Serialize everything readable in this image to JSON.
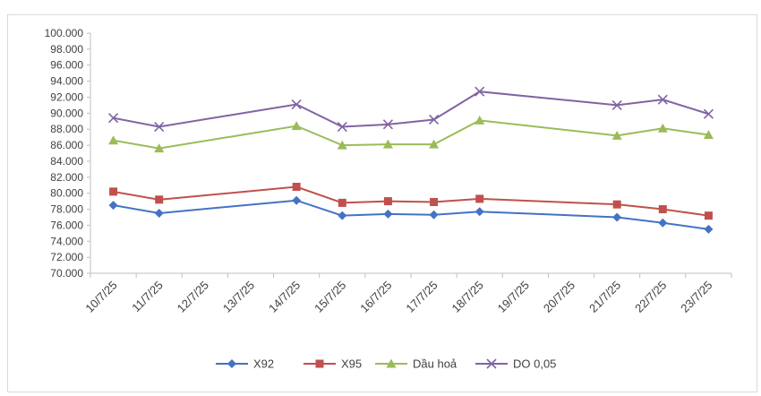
{
  "chart_data": {
    "type": "line",
    "title": "",
    "xlabel": "",
    "ylabel": "",
    "categories": [
      "10/7/25",
      "11/7/25",
      "12/7/25",
      "13/7/25",
      "14/7/25",
      "15/7/25",
      "16/7/25",
      "17/7/25",
      "18/7/25",
      "19/7/25",
      "20/7/25",
      "21/7/25",
      "22/7/25",
      "23/7/25"
    ],
    "ylim": [
      70000,
      100000
    ],
    "yticks": [
      70000,
      72000,
      74000,
      76000,
      78000,
      80000,
      82000,
      84000,
      86000,
      88000,
      90000,
      92000,
      94000,
      96000,
      98000,
      100000
    ],
    "ytick_labels": [
      "70.000",
      "72.000",
      "74.000",
      "76.000",
      "78.000",
      "80.000",
      "82.000",
      "84.000",
      "86.000",
      "88.000",
      "90.000",
      "92.000",
      "94.000",
      "96.000",
      "98.000",
      "100.000"
    ],
    "grid": false,
    "legend_position": "bottom",
    "series": [
      {
        "name": "X92",
        "color": "#4472c4",
        "marker": "diamond",
        "values": [
          78500,
          77500,
          null,
          null,
          79100,
          77200,
          77400,
          77300,
          77700,
          null,
          null,
          77000,
          76300,
          75500
        ]
      },
      {
        "name": "X95",
        "color": "#c0504d",
        "marker": "square",
        "values": [
          80200,
          79200,
          null,
          null,
          80800,
          78800,
          79000,
          78900,
          79300,
          null,
          null,
          78600,
          78000,
          77200
        ]
      },
      {
        "name": "Dầu hoả",
        "color": "#9bbb59",
        "marker": "triangle",
        "values": [
          86600,
          85600,
          null,
          null,
          88400,
          86000,
          86100,
          86100,
          89100,
          null,
          null,
          87200,
          88100,
          87300
        ]
      },
      {
        "name": "DO 0,05",
        "color": "#8064a2",
        "marker": "x",
        "values": [
          89400,
          88300,
          null,
          null,
          91100,
          88300,
          88600,
          89200,
          92700,
          null,
          null,
          91000,
          91700,
          89900
        ]
      }
    ]
  }
}
